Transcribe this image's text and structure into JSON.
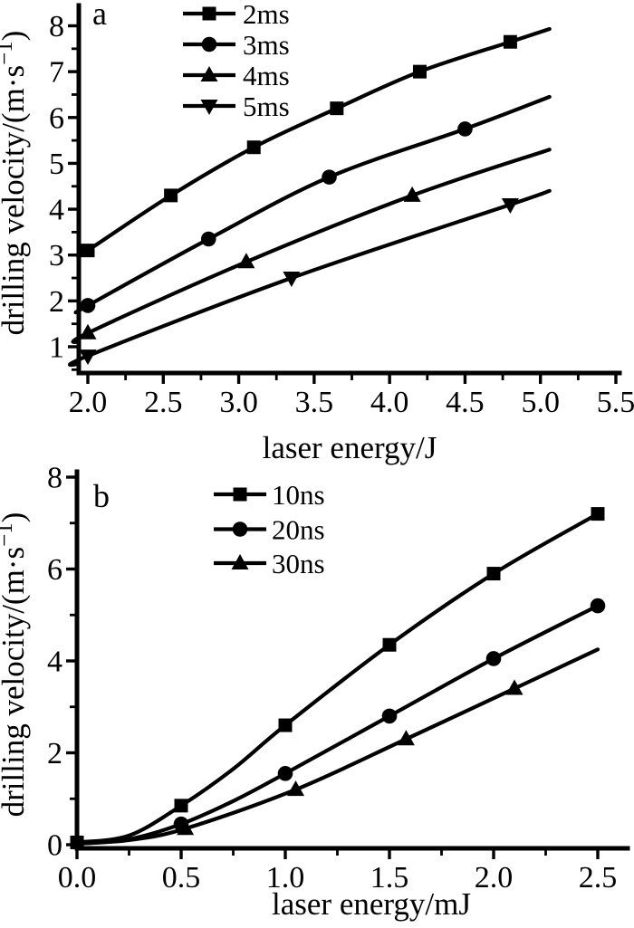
{
  "page": {
    "background": "#ffffff",
    "line_color": "#000000"
  },
  "chart_data": [
    {
      "panel_label": "a",
      "type": "line",
      "title": "",
      "xlabel": "laser energy/J",
      "ylabel": "drilling velocity/(m·s⁻¹)",
      "xlim": [
        1.94,
        5.58
      ],
      "ylim": [
        0.4,
        8.45
      ],
      "grid": false,
      "x_major_ticks": {
        "values": [
          2.0,
          2.5,
          3.0,
          3.5,
          4.0,
          4.5,
          5.0,
          5.5
        ],
        "labels": [
          "2.0",
          "2.5",
          "3.0",
          "3.5",
          "4.0",
          "4.5",
          "5.0",
          "5.5"
        ]
      },
      "x_minor_ticks": [
        2.25,
        2.75,
        3.25,
        3.75,
        4.25,
        4.75,
        5.25
      ],
      "y_major_ticks": {
        "values": [
          1,
          2,
          3,
          4,
          5,
          6,
          7,
          8
        ],
        "labels": [
          "1",
          "2",
          "3",
          "4",
          "5",
          "6",
          "7",
          "8"
        ]
      },
      "y_minor_ticks": [
        0.5,
        1.5,
        2.5,
        3.5,
        4.5,
        5.5,
        6.5,
        7.5
      ],
      "legend": {
        "position": "upper-left-inside",
        "entries": [
          {
            "label": "2ms",
            "marker": "square"
          },
          {
            "label": "3ms",
            "marker": "circle"
          },
          {
            "label": "4ms",
            "marker": "triangle-up"
          },
          {
            "label": "5ms",
            "marker": "triangle-down"
          }
        ]
      },
      "series": [
        {
          "name": "2ms",
          "marker": "square",
          "line_points": [
            [
              1.94,
              2.98
            ],
            [
              2.0,
              3.1
            ],
            [
              2.55,
              4.3
            ],
            [
              3.1,
              5.35
            ],
            [
              3.65,
              6.2
            ],
            [
              4.2,
              7.0
            ],
            [
              4.8,
              7.65
            ],
            [
              5.06,
              7.93
            ]
          ],
          "marker_points": [
            [
              2.0,
              3.1
            ],
            [
              2.55,
              4.3
            ],
            [
              3.1,
              5.35
            ],
            [
              3.65,
              6.2
            ],
            [
              4.2,
              7.0
            ],
            [
              4.8,
              7.65
            ]
          ]
        },
        {
          "name": "3ms",
          "marker": "circle",
          "line_points": [
            [
              1.94,
              1.78
            ],
            [
              2.0,
              1.9
            ],
            [
              2.8,
              3.35
            ],
            [
              3.6,
              4.7
            ],
            [
              4.5,
              5.75
            ],
            [
              5.06,
              6.45
            ]
          ],
          "marker_points": [
            [
              2.0,
              1.9
            ],
            [
              2.8,
              3.35
            ],
            [
              3.6,
              4.7
            ],
            [
              4.5,
              5.75
            ]
          ]
        },
        {
          "name": "4ms",
          "marker": "triangle-up",
          "line_points": [
            [
              1.94,
              1.1
            ],
            [
              2.0,
              1.3
            ],
            [
              3.05,
              2.85
            ],
            [
              4.15,
              4.3
            ],
            [
              5.06,
              5.3
            ]
          ],
          "marker_points": [
            [
              2.0,
              1.3
            ],
            [
              3.05,
              2.85
            ],
            [
              4.15,
              4.3
            ]
          ]
        },
        {
          "name": "5ms",
          "marker": "triangle-down",
          "line_points": [
            [
              1.94,
              0.62
            ],
            [
              2.0,
              0.8
            ],
            [
              3.35,
              2.5
            ],
            [
              4.8,
              4.1
            ],
            [
              5.06,
              4.4
            ]
          ],
          "marker_points": [
            [
              2.0,
              0.8
            ],
            [
              3.35,
              2.5
            ],
            [
              4.8,
              4.1
            ]
          ]
        }
      ]
    },
    {
      "panel_label": "b",
      "type": "line",
      "title": "",
      "xlabel": "laser energy/mJ",
      "ylabel": "drilling velocity/(m·s⁻¹)",
      "xlim": [
        0.0,
        2.64
      ],
      "ylim": [
        0.0,
        8.2
      ],
      "grid": false,
      "x_major_ticks": {
        "values": [
          0.0,
          0.5,
          1.0,
          1.5,
          2.0,
          2.5
        ],
        "labels": [
          "0.0",
          "0.5",
          "1.0",
          "1.5",
          "2.0",
          "2.5"
        ]
      },
      "x_minor_ticks": [
        0.25,
        0.75,
        1.25,
        1.75,
        2.25
      ],
      "y_major_ticks": {
        "values": [
          0,
          2,
          4,
          6,
          8
        ],
        "labels": [
          "0",
          "2",
          "4",
          "6",
          "8"
        ]
      },
      "y_minor_ticks": [
        1,
        3,
        5,
        7
      ],
      "legend": {
        "position": "upper-left-inside",
        "entries": [
          {
            "label": "10ns",
            "marker": "square"
          },
          {
            "label": "20ns",
            "marker": "circle"
          },
          {
            "label": "30ns",
            "marker": "triangle-up"
          }
        ]
      },
      "series": [
        {
          "name": "10ns",
          "marker": "square",
          "line_points": [
            [
              0,
              0.05
            ],
            [
              0.25,
              0.2
            ],
            [
              0.5,
              0.85
            ],
            [
              0.75,
              1.65
            ],
            [
              1.0,
              2.6
            ],
            [
              1.5,
              4.35
            ],
            [
              2.0,
              5.9
            ],
            [
              2.5,
              7.2
            ]
          ],
          "marker_points": [
            [
              0,
              0.05
            ],
            [
              0.5,
              0.85
            ],
            [
              1.0,
              2.6
            ],
            [
              1.5,
              4.35
            ],
            [
              2.0,
              5.9
            ],
            [
              2.5,
              7.2
            ]
          ]
        },
        {
          "name": "20ns",
          "marker": "circle",
          "line_points": [
            [
              0,
              0.02
            ],
            [
              0.25,
              0.12
            ],
            [
              0.5,
              0.45
            ],
            [
              0.75,
              0.95
            ],
            [
              1.0,
              1.55
            ],
            [
              1.5,
              2.8
            ],
            [
              2.0,
              4.05
            ],
            [
              2.5,
              5.2
            ]
          ],
          "marker_points": [
            [
              0.5,
              0.45
            ],
            [
              1.0,
              1.55
            ],
            [
              1.5,
              2.8
            ],
            [
              2.0,
              4.05
            ],
            [
              2.5,
              5.2
            ]
          ]
        },
        {
          "name": "30ns",
          "marker": "triangle-up",
          "line_points": [
            [
              0,
              0.02
            ],
            [
              0.25,
              0.1
            ],
            [
              0.52,
              0.35
            ],
            [
              1.05,
              1.2
            ],
            [
              1.58,
              2.3
            ],
            [
              2.1,
              3.4
            ],
            [
              2.5,
              4.25
            ]
          ],
          "marker_points": [
            [
              0.52,
              0.35
            ],
            [
              1.05,
              1.2
            ],
            [
              1.58,
              2.3
            ],
            [
              2.1,
              3.4
            ]
          ]
        }
      ]
    }
  ]
}
